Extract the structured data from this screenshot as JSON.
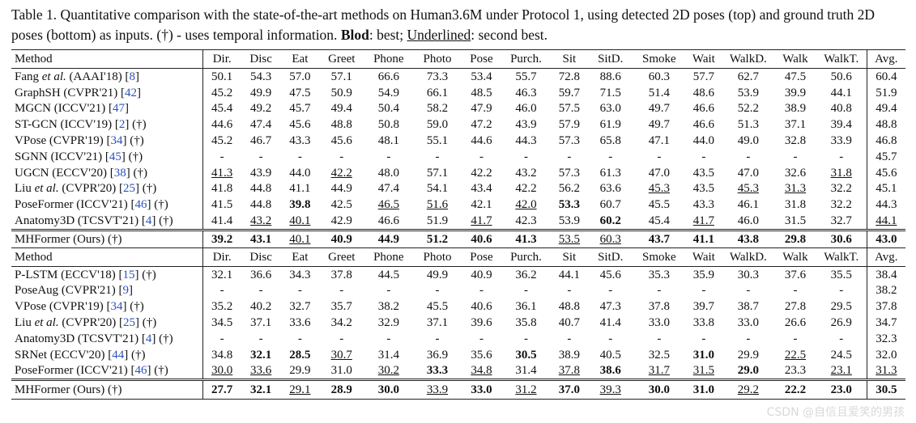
{
  "caption": {
    "part1": "Table 1. Quantitative comparison with the state-of-the-art methods on Human3.6M under Protocol 1, using detected 2D poses (top) and ground truth 2D poses (bottom) as inputs. (†) - uses temporal information.",
    "bold_label": "Blod",
    "part2": ": best;",
    "underline_label": "Underlined",
    "part3": ": second best."
  },
  "headers": [
    "Method",
    "Dir.",
    "Disc",
    "Eat",
    "Greet",
    "Phone",
    "Photo",
    "Pose",
    "Purch.",
    "Sit",
    "SitD.",
    "Smoke",
    "Wait",
    "WalkD.",
    "Walk",
    "WalkT.",
    "Avg."
  ],
  "top_rows": [
    {
      "pre": "Fang ",
      "it": "et al.",
      "post": " (AAAI'18) [",
      "ref": "8",
      "suf": "]",
      "v": [
        "50.1",
        "54.3",
        "57.0",
        "57.1",
        "66.6",
        "73.3",
        "53.4",
        "55.7",
        "72.8",
        "88.6",
        "60.3",
        "57.7",
        "62.7",
        "47.5",
        "50.6",
        "60.4"
      ],
      "b": [],
      "u": []
    },
    {
      "pre": "GraphSH (CVPR'21) [",
      "it": "",
      "post": "",
      "ref": "42",
      "suf": "]",
      "v": [
        "45.2",
        "49.9",
        "47.5",
        "50.9",
        "54.9",
        "66.1",
        "48.5",
        "46.3",
        "59.7",
        "71.5",
        "51.4",
        "48.6",
        "53.9",
        "39.9",
        "44.1",
        "51.9"
      ],
      "b": [],
      "u": []
    },
    {
      "pre": "MGCN (ICCV'21) [",
      "it": "",
      "post": "",
      "ref": "47",
      "suf": "]",
      "v": [
        "45.4",
        "49.2",
        "45.7",
        "49.4",
        "50.4",
        "58.2",
        "47.9",
        "46.0",
        "57.5",
        "63.0",
        "49.7",
        "46.6",
        "52.2",
        "38.9",
        "40.8",
        "49.4"
      ],
      "b": [],
      "u": []
    },
    {
      "pre": "ST-GCN (ICCV'19) [",
      "it": "",
      "post": "",
      "ref": "2",
      "suf": "] (†)",
      "v": [
        "44.6",
        "47.4",
        "45.6",
        "48.8",
        "50.8",
        "59.0",
        "47.2",
        "43.9",
        "57.9",
        "61.9",
        "49.7",
        "46.6",
        "51.3",
        "37.1",
        "39.4",
        "48.8"
      ],
      "b": [],
      "u": []
    },
    {
      "pre": "VPose (CVPR'19) [",
      "it": "",
      "post": "",
      "ref": "34",
      "suf": "] (†)",
      "v": [
        "45.2",
        "46.7",
        "43.3",
        "45.6",
        "48.1",
        "55.1",
        "44.6",
        "44.3",
        "57.3",
        "65.8",
        "47.1",
        "44.0",
        "49.0",
        "32.8",
        "33.9",
        "46.8"
      ],
      "b": [],
      "u": []
    },
    {
      "pre": "SGNN (ICCV'21) [",
      "it": "",
      "post": "",
      "ref": "45",
      "suf": "] (†)",
      "v": [
        "-",
        "-",
        "-",
        "-",
        "-",
        "-",
        "-",
        "-",
        "-",
        "-",
        "-",
        "-",
        "-",
        "-",
        "-",
        "45.7"
      ],
      "b": [],
      "u": []
    },
    {
      "pre": "UGCN (ECCV'20) [",
      "it": "",
      "post": "",
      "ref": "38",
      "suf": "] (†)",
      "v": [
        "41.3",
        "43.9",
        "44.0",
        "42.2",
        "48.0",
        "57.1",
        "42.2",
        "43.2",
        "57.3",
        "61.3",
        "47.0",
        "43.5",
        "47.0",
        "32.6",
        "31.8",
        "45.6"
      ],
      "b": [],
      "u": [
        0,
        3,
        14
      ]
    },
    {
      "pre": "Liu ",
      "it": "et al.",
      "post": " (CVPR'20) [",
      "ref": "25",
      "suf": "] (†)",
      "v": [
        "41.8",
        "44.8",
        "41.1",
        "44.9",
        "47.4",
        "54.1",
        "43.4",
        "42.2",
        "56.2",
        "63.6",
        "45.3",
        "43.5",
        "45.3",
        "31.3",
        "32.2",
        "45.1"
      ],
      "b": [],
      "u": [
        10,
        12,
        13
      ]
    },
    {
      "pre": "PoseFormer (ICCV'21) [",
      "it": "",
      "post": "",
      "ref": "46",
      "suf": "] (†)",
      "v": [
        "41.5",
        "44.8",
        "39.8",
        "42.5",
        "46.5",
        "51.6",
        "42.1",
        "42.0",
        "53.3",
        "60.7",
        "45.5",
        "43.3",
        "46.1",
        "31.8",
        "32.2",
        "44.3"
      ],
      "b": [
        2,
        8
      ],
      "u": [
        4,
        5,
        7
      ]
    },
    {
      "pre": "Anatomy3D (TCSVT'21) [",
      "it": "",
      "post": "",
      "ref": "4",
      "suf": "] (†)",
      "v": [
        "41.4",
        "43.2",
        "40.1",
        "42.9",
        "46.6",
        "51.9",
        "41.7",
        "42.3",
        "53.9",
        "60.2",
        "45.4",
        "41.7",
        "46.0",
        "31.5",
        "32.7",
        "44.1"
      ],
      "b": [
        9
      ],
      "u": [
        1,
        2,
        6,
        11,
        15
      ]
    }
  ],
  "top_ours": {
    "pre": "MHFormer (Ours) (†)",
    "v": [
      "39.2",
      "43.1",
      "40.1",
      "40.9",
      "44.9",
      "51.2",
      "40.6",
      "41.3",
      "53.5",
      "60.3",
      "43.7",
      "41.1",
      "43.8",
      "29.8",
      "30.6",
      "43.0"
    ],
    "b": [
      0,
      1,
      3,
      4,
      5,
      6,
      7,
      10,
      11,
      12,
      13,
      14,
      15
    ],
    "u": [
      2,
      8,
      9
    ]
  },
  "bottom_rows": [
    {
      "pre": "P-LSTM (ECCV'18) [",
      "it": "",
      "post": "",
      "ref": "15",
      "suf": "] (†)",
      "v": [
        "32.1",
        "36.6",
        "34.3",
        "37.8",
        "44.5",
        "49.9",
        "40.9",
        "36.2",
        "44.1",
        "45.6",
        "35.3",
        "35.9",
        "30.3",
        "37.6",
        "35.5",
        "38.4"
      ],
      "b": [],
      "u": []
    },
    {
      "pre": "PoseAug (CVPR'21) [",
      "it": "",
      "post": "",
      "ref": "9",
      "suf": "]",
      "v": [
        "-",
        "-",
        "-",
        "-",
        "-",
        "-",
        "-",
        "-",
        "-",
        "-",
        "-",
        "-",
        "-",
        "-",
        "-",
        "38.2"
      ],
      "b": [],
      "u": []
    },
    {
      "pre": "VPose (CVPR'19) [",
      "it": "",
      "post": "",
      "ref": "34",
      "suf": "] (†)",
      "v": [
        "35.2",
        "40.2",
        "32.7",
        "35.7",
        "38.2",
        "45.5",
        "40.6",
        "36.1",
        "48.8",
        "47.3",
        "37.8",
        "39.7",
        "38.7",
        "27.8",
        "29.5",
        "37.8"
      ],
      "b": [],
      "u": []
    },
    {
      "pre": "Liu ",
      "it": "et al.",
      "post": " (CVPR'20) [",
      "ref": "25",
      "suf": "] (†)",
      "v": [
        "34.5",
        "37.1",
        "33.6",
        "34.2",
        "32.9",
        "37.1",
        "39.6",
        "35.8",
        "40.7",
        "41.4",
        "33.0",
        "33.8",
        "33.0",
        "26.6",
        "26.9",
        "34.7"
      ],
      "b": [],
      "u": []
    },
    {
      "pre": "Anatomy3D (TCSVT'21) [",
      "it": "",
      "post": "",
      "ref": "4",
      "suf": "] (†)",
      "v": [
        "-",
        "-",
        "-",
        "-",
        "-",
        "-",
        "-",
        "-",
        "-",
        "-",
        "-",
        "-",
        "-",
        "-",
        "-",
        "32.3"
      ],
      "b": [],
      "u": []
    },
    {
      "pre": "SRNet (ECCV'20) [",
      "it": "",
      "post": "",
      "ref": "44",
      "suf": "] (†)",
      "v": [
        "34.8",
        "32.1",
        "28.5",
        "30.7",
        "31.4",
        "36.9",
        "35.6",
        "30.5",
        "38.9",
        "40.5",
        "32.5",
        "31.0",
        "29.9",
        "22.5",
        "24.5",
        "32.0"
      ],
      "b": [
        1,
        2,
        7,
        11
      ],
      "u": [
        3,
        13
      ]
    },
    {
      "pre": "PoseFormer (ICCV'21) [",
      "it": "",
      "post": "",
      "ref": "46",
      "suf": "] (†)",
      "v": [
        "30.0",
        "33.6",
        "29.9",
        "31.0",
        "30.2",
        "33.3",
        "34.8",
        "31.4",
        "37.8",
        "38.6",
        "31.7",
        "31.5",
        "29.0",
        "23.3",
        "23.1",
        "31.3"
      ],
      "b": [
        5,
        9,
        12
      ],
      "u": [
        0,
        1,
        4,
        6,
        8,
        10,
        11,
        14,
        15
      ]
    }
  ],
  "bottom_ours": {
    "pre": "MHFormer (Ours) (†)",
    "v": [
      "27.7",
      "32.1",
      "29.1",
      "28.9",
      "30.0",
      "33.9",
      "33.0",
      "31.2",
      "37.0",
      "39.3",
      "30.0",
      "31.0",
      "29.2",
      "22.2",
      "23.0",
      "30.5"
    ],
    "b": [
      0,
      1,
      3,
      4,
      6,
      8,
      10,
      11,
      13,
      14,
      15
    ],
    "u": [
      2,
      5,
      7,
      9,
      12
    ]
  },
  "watermark": "CSDN @自信且爱笑的男孩"
}
